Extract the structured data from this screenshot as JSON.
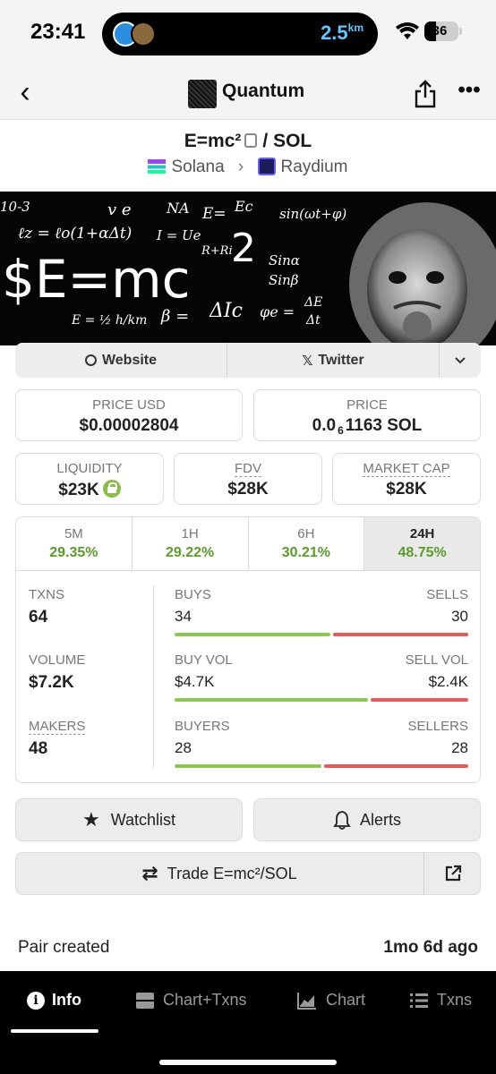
{
  "status_bar": {
    "time": "23:41",
    "distance": "2.5",
    "distance_unit": "km",
    "battery": "36"
  },
  "header": {
    "title": "Quantum"
  },
  "pair": {
    "base": "E=mc²",
    "separator": "/",
    "quote": "SOL",
    "chain": "Solana",
    "dex": "Raydium"
  },
  "banner": {
    "equation": "$E=mc",
    "exponent": "2",
    "formulas": [
      "10-3",
      "v e",
      "NA",
      "E=",
      "Ec",
      "R+Ri",
      "sin(ωt+φ)",
      "Sinα",
      "Sinβ",
      "ℓz = ℓo(1+αΔt)",
      "I = Ue",
      "β =",
      "ΔIc",
      "φe =",
      "ΔE",
      "Δt",
      "E = ½ h/km"
    ],
    "accent_color": "#ffffff",
    "background_color": "#050505"
  },
  "social": {
    "website": "Website",
    "twitter": "Twitter"
  },
  "price_cards": {
    "price_usd_label": "PRICE USD",
    "price_usd": "$0.00002804",
    "price_label": "PRICE",
    "price_prefix": "0.0",
    "price_sub": "6",
    "price_suffix": "1163 SOL"
  },
  "metrics": {
    "liquidity_label": "LIQUIDITY",
    "liquidity": "$23K",
    "fdv_label": "FDV",
    "fdv": "$28K",
    "mcap_label": "MARKET CAP",
    "mcap": "$28K"
  },
  "timeframes": [
    {
      "label": "5M",
      "value": "29.35%"
    },
    {
      "label": "1H",
      "value": "29.22%"
    },
    {
      "label": "6H",
      "value": "30.21%"
    },
    {
      "label": "24H",
      "value": "48.75%",
      "active": true
    }
  ],
  "stats": {
    "txns_label": "TXNS",
    "txns": "64",
    "volume_label": "VOLUME",
    "volume": "$7.2K",
    "makers_label": "MAKERS",
    "makers": "48",
    "buys_label": "BUYS",
    "buys": "34",
    "sells_label": "SELLS",
    "sells": "30",
    "buy_vol_label": "BUY VOL",
    "buy_vol": "$4.7K",
    "sell_vol_label": "SELL VOL",
    "sell_vol": "$2.4K",
    "buyers_label": "BUYERS",
    "buyers": "28",
    "sellers_label": "SELLERS",
    "sellers": "28",
    "buys_ratio": 0.53,
    "buy_vol_ratio": 0.66,
    "buyers_ratio": 0.5,
    "buy_color": "#8cc851",
    "sell_color": "#e75a5a"
  },
  "actions": {
    "watchlist": "Watchlist",
    "alerts": "Alerts",
    "trade": "Trade E=mc²/SOL"
  },
  "pair_created": {
    "label": "Pair created",
    "value": "1mo 6d ago"
  },
  "bottom_nav": {
    "info": "Info",
    "chart_txns": "Chart+Txns",
    "chart": "Chart",
    "txns": "Txns"
  }
}
